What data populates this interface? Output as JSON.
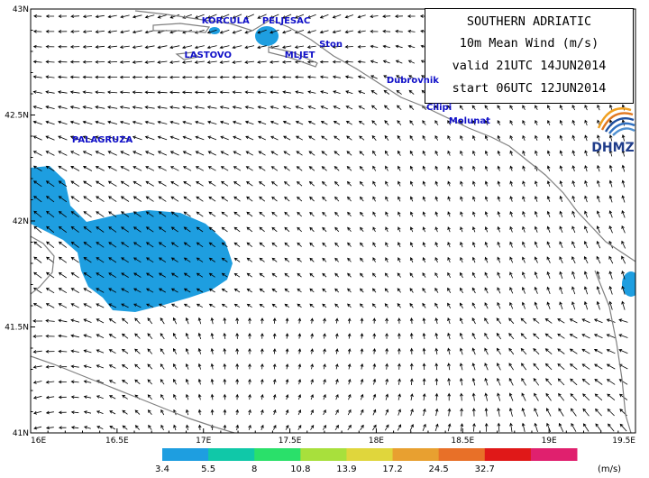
{
  "title": {
    "line1": "SOUTHERN ADRIATIC",
    "line2": "10m Mean Wind (m/s)",
    "line3": "valid 21UTC 14JUN2014",
    "line4": "start 06UTC 12JUN2014"
  },
  "logo": {
    "text": "DHMZ",
    "icon": "dhmz-swirl-logo"
  },
  "axes": {
    "x_ticks": [
      "16E",
      "16.5E",
      "17E",
      "17.5E",
      "18E",
      "18.5E",
      "19E",
      "19.5E"
    ],
    "y_ticks": [
      "43N",
      "42.5N",
      "42N",
      "41.5N",
      "41N"
    ],
    "lon_range": [
      16,
      19.5
    ],
    "lat_range": [
      41,
      43
    ]
  },
  "places": [
    {
      "name": "KORCULA",
      "lon": 17.0,
      "lat": 42.94
    },
    {
      "name": "PELJESAC",
      "lon": 17.35,
      "lat": 42.94
    },
    {
      "name": "Ston",
      "lon": 17.68,
      "lat": 42.83
    },
    {
      "name": "LASTOVO",
      "lon": 16.9,
      "lat": 42.78
    },
    {
      "name": "MLJET",
      "lon": 17.48,
      "lat": 42.78
    },
    {
      "name": "Dubrovnik",
      "lon": 18.07,
      "lat": 42.66
    },
    {
      "name": "Cilipi",
      "lon": 18.3,
      "lat": 42.53
    },
    {
      "name": "Molunat",
      "lon": 18.43,
      "lat": 42.47
    },
    {
      "name": "PALAGRUZA",
      "lon": 16.25,
      "lat": 42.38
    }
  ],
  "colorbar": {
    "unit": "(m/s)",
    "labels": [
      "3.4",
      "5.5",
      "8",
      "10.8",
      "13.9",
      "17.2",
      "24.5",
      "32.7"
    ],
    "colors": [
      "#1e9ee0",
      "#10c8a8",
      "#2ae06a",
      "#a8e03c",
      "#e0d63c",
      "#e8a030",
      "#e87028",
      "#e01818",
      "#e0206e"
    ]
  },
  "colors": {
    "wind_fill": "#1e9ee0",
    "coast": "#808080",
    "arrow": "#000000"
  }
}
